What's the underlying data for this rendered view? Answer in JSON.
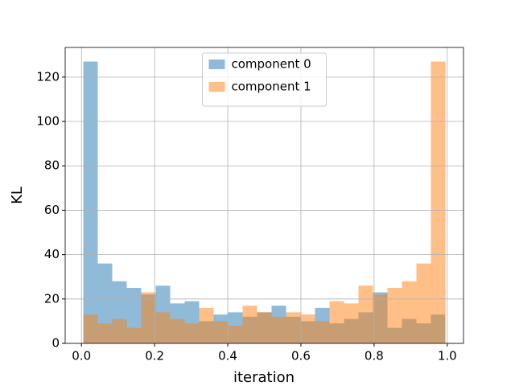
{
  "chart_data": {
    "type": "histogram",
    "xlabel": "iteration",
    "ylabel": "KL",
    "bins": [
      0.005,
      0.0446,
      0.0842,
      0.1238,
      0.1634,
      0.203,
      0.2426,
      0.2822,
      0.3218,
      0.3614,
      0.401,
      0.4406,
      0.4802,
      0.5198,
      0.5594,
      0.599,
      0.6386,
      0.6782,
      0.7178,
      0.7574,
      0.797,
      0.8366,
      0.8762,
      0.9158,
      0.9554,
      0.995
    ],
    "series": [
      {
        "name": "component 0",
        "color": "#1f77b4",
        "values": [
          127,
          36,
          28,
          25,
          22,
          26,
          18,
          19,
          10,
          13,
          14,
          12,
          14,
          17,
          12,
          10,
          16,
          9,
          11,
          14,
          23,
          7,
          11,
          9,
          13
        ]
      },
      {
        "name": "component 1",
        "color": "#ff7f0e",
        "values": [
          13,
          9,
          11,
          7,
          23,
          14,
          11,
          9,
          16,
          10,
          8,
          17,
          14,
          12,
          14,
          13,
          10,
          19,
          18,
          26,
          22,
          25,
          28,
          36,
          127
        ]
      }
    ],
    "opacity": 0.5,
    "xlim": [
      -0.0445,
      1.0445
    ],
    "xticks": [
      {
        "value": 0,
        "label": "0.0"
      },
      0.2,
      0.4,
      0.6,
      0.8,
      {
        "value": 1,
        "label": "1.0"
      }
    ],
    "ylim": [
      0,
      133.35
    ],
    "yticks": [
      0,
      20,
      40,
      60,
      80,
      100,
      120
    ],
    "grid": true,
    "legend": "upper center"
  }
}
